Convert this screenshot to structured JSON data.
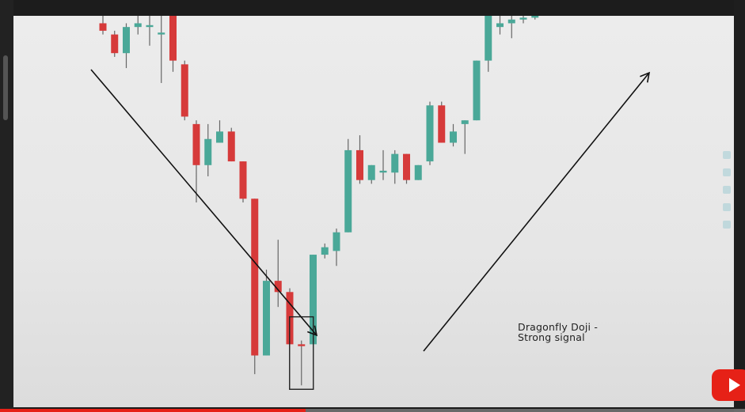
{
  "annotation": {
    "line1": "Dragonfly Doji -",
    "line2": "Strong signal"
  },
  "colors": {
    "bullish": "#4aa898",
    "bearish": "#d63a3a",
    "wick": "#666666",
    "arrow": "#111111",
    "highlight_box": "#222222"
  },
  "video": {
    "progress_fraction": 0.41
  },
  "chart_data": {
    "type": "candlestick",
    "title": "",
    "xlabel": "",
    "ylabel": "",
    "grid": false,
    "legend": "none",
    "ylim": [
      0,
      100
    ],
    "candles": [
      {
        "o": 98,
        "c": 96,
        "h": 100,
        "l": 95
      },
      {
        "o": 95,
        "c": 90,
        "h": 96,
        "l": 89
      },
      {
        "o": 90,
        "c": 97,
        "h": 98,
        "l": 86
      },
      {
        "o": 97,
        "c": 98,
        "h": 100,
        "l": 95
      },
      {
        "o": 97,
        "c": 97.5,
        "h": 100,
        "l": 92
      },
      {
        "o": 95,
        "c": 95.5,
        "h": 100,
        "l": 82
      },
      {
        "o": 100,
        "c": 88,
        "h": 100,
        "l": 85
      },
      {
        "o": 87,
        "c": 73,
        "h": 88,
        "l": 72
      },
      {
        "o": 71,
        "c": 60,
        "h": 72,
        "l": 50
      },
      {
        "o": 60,
        "c": 67,
        "h": 71,
        "l": 57
      },
      {
        "o": 66,
        "c": 69,
        "h": 72,
        "l": 66
      },
      {
        "o": 69,
        "c": 61,
        "h": 70,
        "l": 61
      },
      {
        "o": 61,
        "c": 51,
        "h": 61,
        "l": 50
      },
      {
        "o": 51,
        "c": 9,
        "h": 51,
        "l": 4
      },
      {
        "o": 9,
        "c": 29,
        "h": 32,
        "l": 9
      },
      {
        "o": 29,
        "c": 26,
        "h": 40,
        "l": 22
      },
      {
        "o": 26,
        "c": 12,
        "h": 27,
        "l": 12
      },
      {
        "o": 12,
        "c": 11.5,
        "h": 13,
        "l": 1
      },
      {
        "o": 12,
        "c": 36,
        "h": 36,
        "l": 12
      },
      {
        "o": 36,
        "c": 38,
        "h": 39,
        "l": 35
      },
      {
        "o": 37,
        "c": 42,
        "h": 43,
        "l": 33
      },
      {
        "o": 42,
        "c": 64,
        "h": 67,
        "l": 42
      },
      {
        "o": 64,
        "c": 56,
        "h": 68,
        "l": 55
      },
      {
        "o": 56,
        "c": 60,
        "h": 60,
        "l": 55
      },
      {
        "o": 58,
        "c": 58.5,
        "h": 64,
        "l": 56
      },
      {
        "o": 58,
        "c": 63,
        "h": 64,
        "l": 55
      },
      {
        "o": 63,
        "c": 56,
        "h": 63,
        "l": 55
      },
      {
        "o": 56,
        "c": 60,
        "h": 60,
        "l": 56
      },
      {
        "o": 61,
        "c": 76,
        "h": 77,
        "l": 60
      },
      {
        "o": 76,
        "c": 66,
        "h": 77,
        "l": 66
      },
      {
        "o": 66,
        "c": 69,
        "h": 71,
        "l": 65
      },
      {
        "o": 71,
        "c": 72,
        "h": 72,
        "l": 63
      },
      {
        "o": 72,
        "c": 88,
        "h": 88,
        "l": 72
      },
      {
        "o": 88,
        "c": 100,
        "h": 100,
        "l": 85
      },
      {
        "o": 97,
        "c": 98,
        "h": 100,
        "l": 95
      },
      {
        "o": 98,
        "c": 99,
        "h": 100,
        "l": 94
      },
      {
        "o": 99,
        "c": 99.5,
        "h": 100,
        "l": 98
      },
      {
        "o": 99.5,
        "c": 100,
        "h": 100,
        "l": 99
      }
    ],
    "highlight_index": 17,
    "arrows": [
      {
        "direction": "down",
        "from_index": 0,
        "to_index": 15
      },
      {
        "direction": "up",
        "from_index": 19,
        "to_index": 37
      }
    ]
  }
}
